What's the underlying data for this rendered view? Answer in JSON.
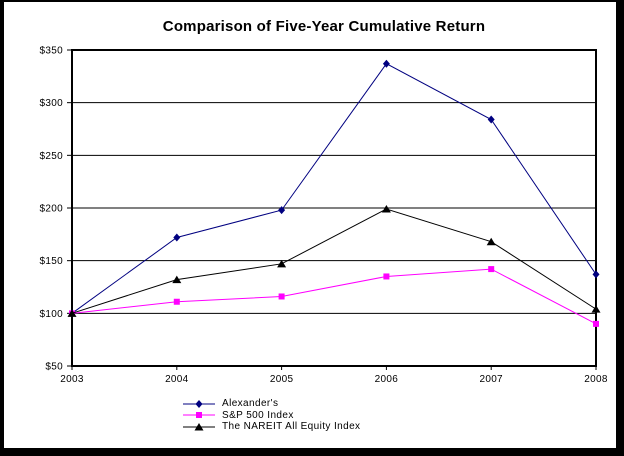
{
  "frame": {
    "background": "#FFFFFF",
    "border_color": "#000000"
  },
  "chart_data": {
    "type": "line",
    "title": "Comparison of Five-Year Cumulative Return",
    "xlabel": "",
    "ylabel": "",
    "x": [
      2003,
      2004,
      2005,
      2006,
      2007,
      2008
    ],
    "xtick_labels": [
      "2003",
      "2004",
      "2005",
      "2006",
      "2007",
      "2008"
    ],
    "ylim": [
      50,
      350
    ],
    "ytick_step": 50,
    "ytick_labels": [
      "$50",
      "$100",
      "$150",
      "$200",
      "$250",
      "$300",
      "$350"
    ],
    "grid": "horizontal",
    "axis_color": "#000000",
    "gridline_color": "#000000",
    "legend_position": "bottom-left",
    "series": [
      {
        "name": "Alexander's",
        "marker": "diamond",
        "color": "#000080",
        "values": [
          100,
          172,
          198,
          337,
          284,
          137
        ]
      },
      {
        "name": "S&P 500 Index",
        "marker": "square",
        "color": "#FF00FF",
        "values": [
          100,
          111,
          116,
          135,
          142,
          90
        ]
      },
      {
        "name": "The NAREIT All Equity Index",
        "marker": "triangle",
        "color": "#000000",
        "values": [
          100,
          132,
          147,
          199,
          168,
          104
        ]
      }
    ]
  }
}
